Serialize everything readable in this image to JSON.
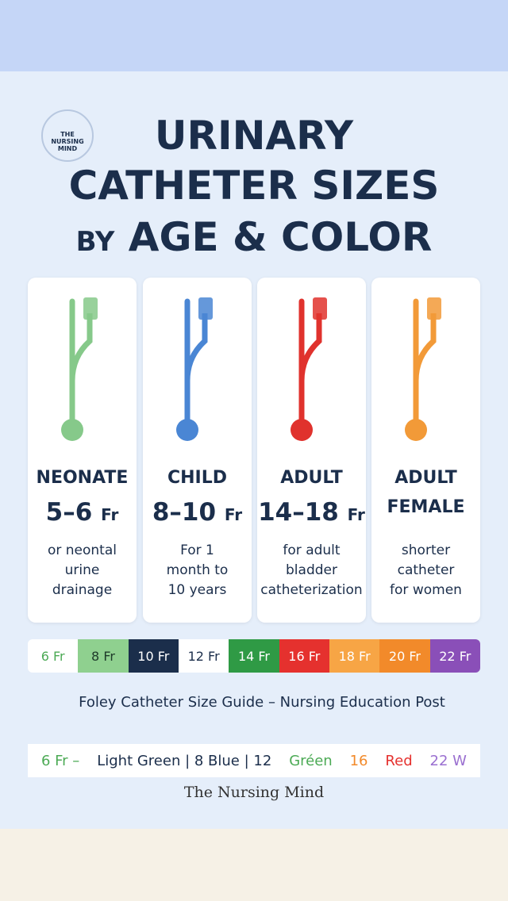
{
  "logo": "THE NURSING MIND",
  "title": {
    "line1": "URINARY",
    "line2": "CATHETER SIZES",
    "by": "BY",
    "line3": "AGE & COLOR"
  },
  "cards": [
    {
      "label": [
        "NEONATE"
      ],
      "size": "5–6",
      "unit": "Fr",
      "description": [
        "or neontal",
        "urine",
        "drainage"
      ],
      "color": "#86c98a"
    },
    {
      "label": [
        "CHILD"
      ],
      "size": "8–10",
      "unit": "Fr",
      "description": [
        "For 1",
        "month to",
        "10 years"
      ],
      "color": "#4a86d4"
    },
    {
      "label": [
        "ADULT"
      ],
      "size": "14–18",
      "unit": "Fr",
      "description": [
        "for adult",
        "bladder",
        "catheterization"
      ],
      "color": "#e0322d"
    },
    {
      "label": [
        "ADULT",
        "FEMALE"
      ],
      "description": [
        "shorter",
        "catheter",
        "for women"
      ],
      "color": "#f29a38"
    }
  ],
  "strip": [
    {
      "text": "6 Fr",
      "bg": "#ffffff",
      "fg": "#4caa55"
    },
    {
      "text": "8 Fr",
      "bg": "#8fd08f",
      "fg": "#1f3b2a"
    },
    {
      "text": "10 Fr",
      "bg": "#1b2e4b",
      "fg": "#ffffff"
    },
    {
      "text": "12 Fr",
      "bg": "#ffffff",
      "fg": "#1b2e4b"
    },
    {
      "text": "14 Fr",
      "bg": "#2f9a45",
      "fg": "#ffffff"
    },
    {
      "text": "16 Fr",
      "bg": "#e5312e",
      "fg": "#ffffff"
    },
    {
      "text": "18 Fr",
      "bg": "#f7a545",
      "fg": "#ffffff"
    },
    {
      "text": "20 Fr",
      "bg": "#f28a2a",
      "fg": "#ffffff"
    },
    {
      "text": "22 Fr",
      "bg": "#8a4fb8",
      "fg": "#ffffff"
    }
  ],
  "caption": "Foley Catheter Size Guide – Nursing Education Post",
  "legend": [
    {
      "text": "6 Fr –",
      "color": "#4caa55"
    },
    {
      "text": "Light Green | 8 Blue | 12",
      "color": "#1b2e4b"
    },
    {
      "text": "Gréen",
      "color": "#4caa55"
    },
    {
      "text": "16",
      "color": "#f28a2a"
    },
    {
      "text": "Red",
      "color": "#e5312e"
    },
    {
      "text": "22 W",
      "color": "#9a6fd0"
    }
  ],
  "footer": "The Nursing Mind"
}
